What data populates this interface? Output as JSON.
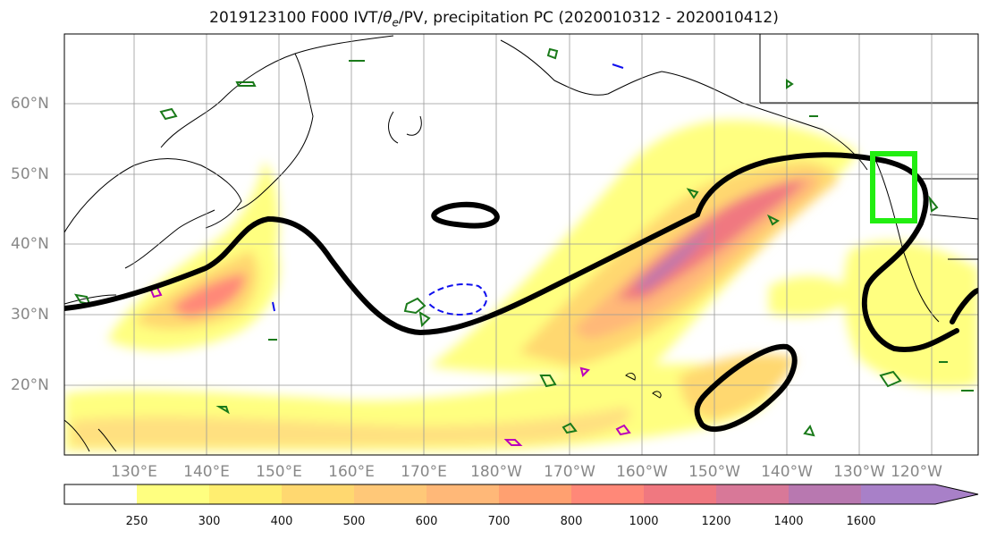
{
  "title": {
    "prefix": "2019123100 F000 IVT/",
    "theta_symbol": "θ",
    "theta_sub": "e",
    "suffix": "/PV, precipitation PC (2020010312 - 2020010412)"
  },
  "lat_labels": [
    "60°N",
    "50°N",
    "40°N",
    "30°N",
    "20°N"
  ],
  "lon_labels": [
    "130°E",
    "140°E",
    "150°E",
    "160°E",
    "170°E",
    "180°W",
    "170°W",
    "160°W",
    "150°W",
    "140°W",
    "130°W",
    "120°W"
  ],
  "colorbar": {
    "levels": [
      "250",
      "300",
      "400",
      "500",
      "600",
      "700",
      "800",
      "1000",
      "1200",
      "1400",
      "1600"
    ],
    "colors": [
      "#ffffff",
      "#ffff80",
      "#ffee70",
      "#ffd870",
      "#ffc878",
      "#ffb878",
      "#ffa070",
      "#ff8878",
      "#f07880",
      "#d87898",
      "#b878b0",
      "#a880c8"
    ]
  },
  "colors": {
    "box": "#22ee11",
    "contour_pos": "#1a7a1a",
    "contour_neg": "#1010ee",
    "contour_precip": "#bb00bb",
    "theta_line": "#000000"
  }
}
